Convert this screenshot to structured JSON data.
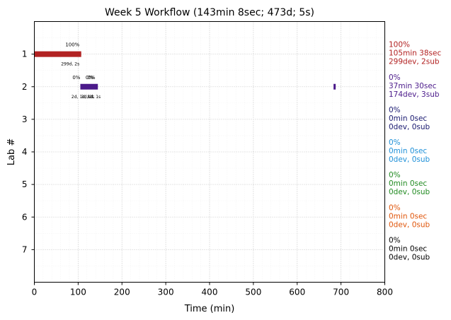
{
  "chart_data": {
    "type": "bar",
    "title": "Week 5 Workflow (143min 8sec; 473d; 5s)",
    "xlabel": "Time (min)",
    "ylabel": "Lab #",
    "xlim": [
      0,
      800
    ],
    "ylim": [
      8,
      0
    ],
    "xticks": [
      "0",
      "100",
      "200",
      "300",
      "400",
      "500",
      "600",
      "700",
      "800"
    ],
    "yticks": [
      "1",
      "2",
      "3",
      "4",
      "5",
      "6",
      "7"
    ],
    "grid": true,
    "labs": [
      {
        "lab": 1,
        "color": "#b22222",
        "segments": [
          [
            0,
            107
          ]
        ],
        "percent_labels": [
          {
            "x": 87,
            "text": "100%"
          }
        ],
        "detail_labels": [
          {
            "x": 82,
            "text": "299d, 2s"
          }
        ],
        "side_label": [
          "100%",
          "105min 38sec",
          "299dev, 2sub"
        ]
      },
      {
        "lab": 2,
        "color": "#4b1a8a",
        "segments": [
          [
            105,
            145
          ],
          [
            683,
            687
          ]
        ],
        "percent_labels": [
          {
            "x": 96,
            "text": "0%"
          },
          {
            "x": 126,
            "text": "0%"
          },
          {
            "x": 130,
            "text": "0%"
          }
        ],
        "detail_labels": [
          {
            "x": 118,
            "text": "2d, 1d, 1d, 1s"
          },
          {
            "x": 122,
            "text": "3d, 1s"
          },
          {
            "x": 127,
            "text": "8d"
          }
        ],
        "side_label": [
          "0%",
          "37min 30sec",
          "174dev, 3sub"
        ]
      },
      {
        "lab": 3,
        "color": "#191970",
        "segments": [],
        "percent_labels": [],
        "detail_labels": [],
        "side_label": [
          "0%",
          "0min 0sec",
          "0dev, 0sub"
        ]
      },
      {
        "lab": 4,
        "color": "#1e90d8",
        "segments": [],
        "percent_labels": [],
        "detail_labels": [],
        "side_label": [
          "0%",
          "0min 0sec",
          "0dev, 0sub"
        ]
      },
      {
        "lab": 5,
        "color": "#228b22",
        "segments": [],
        "percent_labels": [],
        "detail_labels": [],
        "side_label": [
          "0%",
          "0min 0sec",
          "0dev, 0sub"
        ]
      },
      {
        "lab": 6,
        "color": "#e0560b",
        "segments": [],
        "percent_labels": [],
        "detail_labels": [],
        "side_label": [
          "0%",
          "0min 0sec",
          "0dev, 0sub"
        ]
      },
      {
        "lab": 7,
        "color": "#000000",
        "segments": [],
        "percent_labels": [],
        "detail_labels": [],
        "side_label": [
          "0%",
          "0min 0sec",
          "0dev, 0sub"
        ]
      }
    ]
  }
}
